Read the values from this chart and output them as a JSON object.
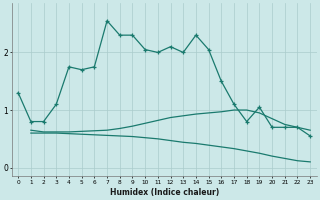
{
  "xlabel": "Humidex (Indice chaleur)",
  "x_values": [
    0,
    1,
    2,
    3,
    4,
    5,
    6,
    7,
    8,
    9,
    10,
    11,
    12,
    13,
    14,
    15,
    16,
    17,
    18,
    19,
    20,
    21,
    22,
    23
  ],
  "line1_y": [
    1.3,
    0.8,
    0.8,
    1.1,
    1.75,
    1.7,
    1.75,
    2.55,
    2.3,
    2.3,
    2.05,
    2.0,
    2.1,
    2.0,
    2.3,
    2.05,
    1.5,
    1.1,
    0.8,
    1.05,
    0.7,
    0.7,
    0.7,
    0.55
  ],
  "line2_x": [
    1,
    2,
    3,
    4,
    5,
    6,
    7,
    8,
    9,
    10,
    11,
    12,
    13,
    14,
    15,
    16,
    17,
    18,
    19,
    20,
    21,
    22,
    23
  ],
  "line2_y": [
    0.65,
    0.62,
    0.62,
    0.62,
    0.63,
    0.64,
    0.65,
    0.68,
    0.72,
    0.77,
    0.82,
    0.87,
    0.9,
    0.93,
    0.95,
    0.97,
    1.0,
    1.0,
    0.95,
    0.85,
    0.75,
    0.7,
    0.65
  ],
  "line3_x": [
    1,
    2,
    3,
    4,
    5,
    6,
    7,
    8,
    9,
    10,
    11,
    12,
    13,
    14,
    15,
    16,
    17,
    18,
    19,
    20,
    21,
    22,
    23
  ],
  "line3_y": [
    0.6,
    0.6,
    0.6,
    0.59,
    0.58,
    0.57,
    0.56,
    0.55,
    0.54,
    0.52,
    0.5,
    0.47,
    0.44,
    0.42,
    0.39,
    0.36,
    0.33,
    0.29,
    0.25,
    0.2,
    0.16,
    0.12,
    0.1
  ],
  "line_color": "#1a7a6e",
  "bg_color": "#cce8e8",
  "grid_color": "#aacccc",
  "ylim": [
    -0.15,
    2.85
  ],
  "yticks": [
    0,
    1,
    2
  ],
  "xlim": [
    -0.5,
    23.5
  ]
}
